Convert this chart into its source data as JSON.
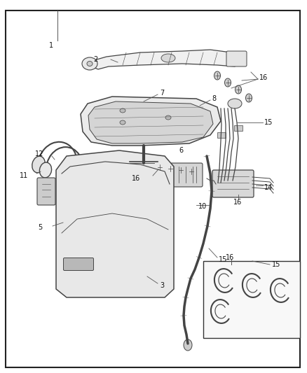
{
  "bg_color": "#ffffff",
  "border_color": "#222222",
  "sketch_color": "#444444",
  "fig_width": 4.38,
  "fig_height": 5.33,
  "dpi": 100
}
